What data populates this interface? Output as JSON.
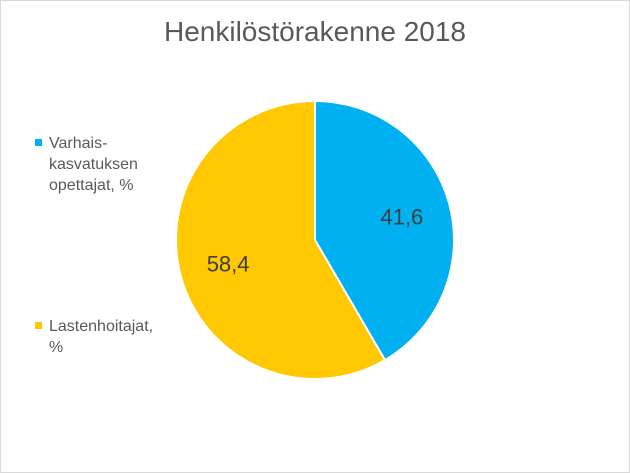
{
  "chart_data": {
    "type": "pie",
    "title": "Henkilöstörakenne 2018",
    "slices": [
      {
        "label": "Varhais-kasvatuksen opettajat, %",
        "value": 41.6,
        "display": "41,6",
        "color": "#00b0f0"
      },
      {
        "label": "Lastenhoitajat, %",
        "value": 58.4,
        "display": "58,4",
        "color": "#ffc800"
      }
    ],
    "legend_position": "left",
    "start_angle": "12 o'clock",
    "direction": "clockwise"
  }
}
